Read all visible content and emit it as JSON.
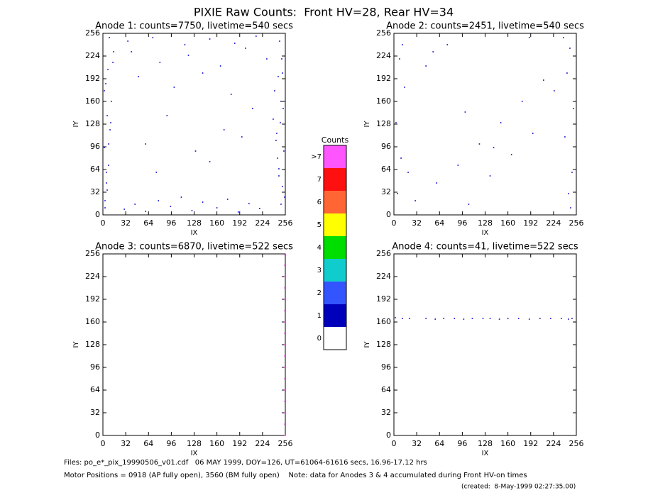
{
  "title": "PIXIE Raw Counts:  Front HV=28, Rear HV=34",
  "chart_data": [
    {
      "type": "scatter",
      "title": "Anode 1: counts=7750, livetime=540 secs",
      "x_label": "IX",
      "y_label": "IY",
      "xlim": [
        0,
        256
      ],
      "ylim": [
        0,
        256
      ],
      "xticks": [
        0,
        32,
        64,
        96,
        128,
        160,
        192,
        224,
        256
      ],
      "yticks": [
        0,
        32,
        64,
        96,
        128,
        160,
        192,
        224,
        256
      ],
      "color": "#0000cc",
      "x": [
        3,
        5,
        8,
        2,
        10,
        6,
        12,
        4,
        7,
        15,
        9,
        3,
        11,
        5,
        14,
        2,
        8,
        6,
        250,
        252,
        247,
        254,
        244,
        249,
        253,
        241,
        246,
        251,
        248,
        255,
        243,
        250,
        245,
        252,
        239,
        247,
        30,
        45,
        60,
        78,
        95,
        110,
        125,
        140,
        160,
        175,
        190,
        205,
        220,
        35,
        70,
        115,
        150,
        185,
        215,
        40,
        80,
        120,
        165,
        200,
        230,
        50,
        100,
        140,
        180,
        60,
        90,
        130,
        170,
        210,
        75,
        150,
        195
      ],
      "values": [
        20,
        45,
        70,
        95,
        120,
        140,
        160,
        185,
        205,
        230,
        250,
        10,
        130,
        60,
        215,
        175,
        100,
        35,
        15,
        40,
        65,
        90,
        115,
        130,
        150,
        175,
        195,
        220,
        245,
        25,
        105,
        160,
        80,
        200,
        135,
        55,
        8,
        15,
        5,
        20,
        12,
        25,
        6,
        18,
        10,
        22,
        4,
        16,
        9,
        245,
        250,
        240,
        248,
        242,
        252,
        230,
        215,
        225,
        210,
        235,
        220,
        195,
        180,
        200,
        170,
        100,
        140,
        90,
        120,
        150,
        60,
        75,
        110
      ]
    },
    {
      "type": "scatter",
      "title": "Anode 2: counts=2451, livetime=540 secs",
      "x_label": "IX",
      "y_label": "IY",
      "xlim": [
        0,
        256
      ],
      "ylim": [
        0,
        256
      ],
      "xticks": [
        0,
        32,
        64,
        96,
        128,
        160,
        192,
        224,
        256
      ],
      "yticks": [
        0,
        32,
        64,
        96,
        128,
        160,
        192,
        224,
        256
      ],
      "color": "#0000cc",
      "x": [
        5,
        10,
        3,
        15,
        8,
        20,
        12,
        248,
        245,
        250,
        240,
        252,
        243,
        247,
        238,
        30,
        60,
        90,
        120,
        150,
        180,
        210,
        45,
        75,
        105,
        135,
        165,
        195,
        225,
        55,
        100,
        140,
        190
      ],
      "values": [
        30,
        80,
        130,
        180,
        220,
        60,
        240,
        10,
        30,
        60,
        110,
        150,
        200,
        235,
        250,
        20,
        45,
        70,
        100,
        130,
        160,
        190,
        210,
        240,
        15,
        55,
        85,
        115,
        175,
        230,
        145,
        95,
        250
      ]
    },
    {
      "type": "scatter",
      "title": "Anode 3: counts=6870, livetime=522 secs",
      "x_label": "IX",
      "y_label": "IY",
      "xlim": [
        0,
        256
      ],
      "ylim": [
        0,
        256
      ],
      "xticks": [
        0,
        32,
        64,
        96,
        128,
        160,
        192,
        224,
        256
      ],
      "yticks": [
        0,
        32,
        64,
        96,
        128,
        160,
        192,
        224,
        256
      ],
      "color": "#ff55ff",
      "x": [
        255,
        255,
        255,
        255,
        255,
        255,
        255,
        255,
        255,
        255,
        255,
        255,
        255,
        255,
        255,
        255,
        255
      ],
      "values": [
        0,
        16,
        32,
        48,
        64,
        80,
        96,
        112,
        128,
        144,
        160,
        176,
        192,
        208,
        224,
        240,
        255
      ]
    },
    {
      "type": "scatter",
      "title": "Anode 4: counts=41, livetime=522 secs",
      "x_label": "IX",
      "y_label": "IY",
      "xlim": [
        0,
        256
      ],
      "ylim": [
        0,
        256
      ],
      "xticks": [
        0,
        32,
        64,
        96,
        128,
        160,
        192,
        224,
        256
      ],
      "yticks": [
        0,
        32,
        64,
        96,
        128,
        160,
        192,
        224,
        256
      ],
      "color": "#0000cc",
      "x": [
        2,
        12,
        22,
        45,
        58,
        70,
        85,
        98,
        110,
        125,
        135,
        148,
        160,
        175,
        190,
        205,
        220,
        235,
        245,
        250
      ],
      "values": [
        166,
        165,
        165,
        165,
        164,
        165,
        165,
        164,
        165,
        165,
        165,
        164,
        165,
        165,
        164,
        165,
        165,
        165,
        164,
        165
      ]
    }
  ],
  "colorbar": {
    "title": "Counts",
    "categories": [
      "0",
      "1",
      "2",
      "3",
      "4",
      "5",
      "6",
      "7",
      ">7"
    ],
    "colors": [
      "#ffffff",
      "#0000bb",
      "#3355ff",
      "#11cccc",
      "#00dd00",
      "#ffff00",
      "#ff6633",
      "#ff1010",
      "#ff55ff"
    ]
  },
  "footer": {
    "files": "Files: po_e*_pix_19990506_v01.cdf   06 MAY 1999, DOY=126, UT=61064-61616 secs, 16.96-17.12 hrs",
    "motor": "Motor Positions = 0918 (AP fully open), 3560 (BM fully open)    Note: data for Anodes 3 & 4 accumulated during Front HV-on times",
    "created": "(created:  8-May-1999 02:27:35.00)"
  }
}
